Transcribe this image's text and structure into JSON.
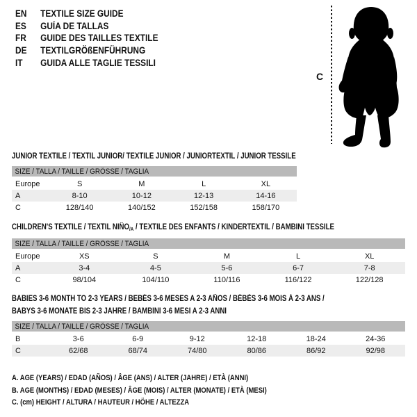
{
  "header": {
    "languages": [
      {
        "code": "EN",
        "text": "TEXTILE SIZE GUIDE"
      },
      {
        "code": "ES",
        "text": "GUÍA DE TALLAS"
      },
      {
        "code": "FR",
        "text": "GUIDE DES TAILLES TEXTILE"
      },
      {
        "code": "DE",
        "text": "TEXTILGRÖßENFÜHRUNG"
      },
      {
        "code": "IT",
        "text": "GUIDA ALLE TAGLIE TESSILI"
      }
    ]
  },
  "figure": {
    "measure_label": "C"
  },
  "tables": [
    {
      "title": "JUNIOR TEXTILE / TEXTIL JUNIOR/ TEXTILE JUNIOR / JUNIORTEXTIL / JUNIOR TESSILE",
      "size_header": "SIZE / TALLA / TAILLE / GRÖSSE / TAGLIA",
      "rows": [
        {
          "label": "Europe",
          "values": [
            "S",
            "M",
            "L",
            "XL"
          ]
        },
        {
          "label": "A",
          "values": [
            "8-10",
            "10-12",
            "12-13",
            "14-16"
          ]
        },
        {
          "label": "C",
          "values": [
            "128/140",
            "140/152",
            "152/158",
            "158/170"
          ]
        }
      ]
    },
    {
      "title_prefix": "CHILDREN'S TEXTILE / TEXTIL NIÑO",
      "title_sub": "/A",
      "title_suffix": " / TEXTILE DES ENFANTS / KINDERTEXTIL / BAMBINI TESSILE",
      "size_header": "SIZE / TALLA / TAILLE / GRÖSSE / TAGLIA",
      "rows": [
        {
          "label": "Europe",
          "values": [
            "XS",
            "S",
            "M",
            "L",
            "XL"
          ]
        },
        {
          "label": "A",
          "values": [
            "3-4",
            "4-5",
            "5-6",
            "6-7",
            "7-8"
          ]
        },
        {
          "label": "C",
          "values": [
            "98/104",
            "104/110",
            "110/116",
            "116/122",
            "122/128"
          ]
        }
      ]
    },
    {
      "title_line1": "BABIES 3-6 MONTH TO 2-3 YEARS / BEBÉS 3-6 MESES A 2-3 AÑOS / BÉBÉS 3-6 MOIS À 2-3 ANS /",
      "title_line2": "BABYS 3-6 MONATE BIS 2-3 JAHRE / BAMBINI 3-6 MESI A 2-3 ANNI",
      "size_header": "SIZE / TALLA / TAILLE / GRÖSSE / TAGLIA",
      "rows": [
        {
          "label": "B",
          "values": [
            "3-6",
            "6-9",
            "9-12",
            "12-18",
            "18-24",
            "24-36"
          ]
        },
        {
          "label": "C",
          "values": [
            "62/68",
            "68/74",
            "74/80",
            "80/86",
            "86/92",
            "92/98"
          ]
        }
      ]
    }
  ],
  "footnotes": [
    "A. AGE (YEARS) / EDAD (AÑOS) / ÂGE (ANS) / ALTER (JAHRE) / ETÀ (ANNI)",
    "B. AGE (MONTHS) / EDAD (MESES) / ÂGE (MOIS) / ALTER (MONATE) / ETÀ (MESI)",
    "C. (cm) HEIGHT / ALTURA / HAUTEUR / HÖHE / ALTEZZA"
  ],
  "colors": {
    "header_bar": "#b9b9b9",
    "alt_row": "#ededed",
    "text": "#111111",
    "silhouette": "#000000"
  }
}
